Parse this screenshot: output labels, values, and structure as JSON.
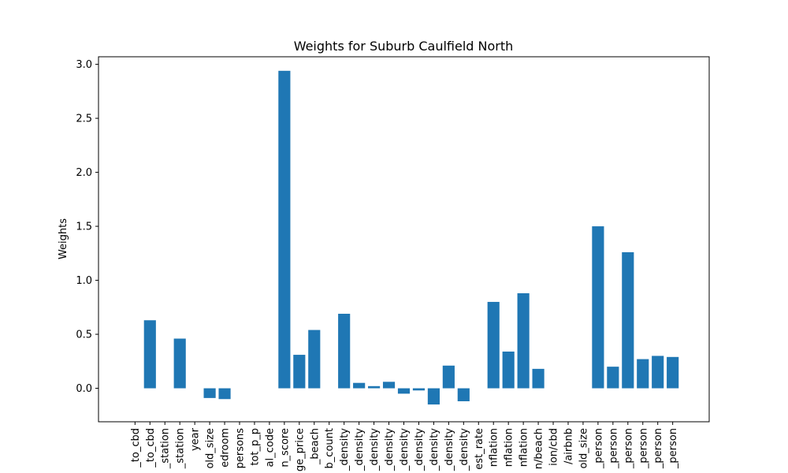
{
  "chart_data": {
    "type": "bar",
    "title": "Weights for Suburb Caulfield North",
    "xlabel": "",
    "ylabel": "Weights",
    "ylim": [
      -0.31,
      3.07
    ],
    "yticks": [
      0.0,
      0.5,
      1.0,
      1.5,
      2.0,
      2.5,
      3.0
    ],
    "ytick_labels": [
      "0.0",
      "0.5",
      "1.0",
      "1.5",
      "2.0",
      "2.5",
      "3.0"
    ],
    "bar_color": "#1f77b4",
    "grid": false,
    "legend": "none",
    "categories": [
      "_to_cbd",
      "_to_cbd",
      "_station",
      "_station",
      "year",
      "old_size",
      "edroom",
      "persons",
      "tot_p_p",
      "al_code",
      "n_score",
      "ge_price",
      "_beach",
      "b_count",
      "_density",
      "_density",
      "_density",
      "_density",
      "_density",
      "_density",
      "_density",
      "_density",
      "_density",
      "est_rate",
      "nflation",
      "nflation",
      "nflation",
      "n/beach",
      "ion/cbd",
      "/airbnb",
      "old_size",
      "_person",
      "_person",
      "_person",
      "_person",
      "_person",
      "_person"
    ],
    "values": [
      0.0,
      0.63,
      0.0,
      0.46,
      0.0,
      -0.09,
      -0.1,
      0.0,
      0.0,
      0.0,
      2.94,
      0.31,
      0.54,
      0.0,
      0.69,
      0.05,
      0.02,
      0.06,
      -0.05,
      -0.02,
      -0.15,
      0.21,
      -0.12,
      0.0,
      0.8,
      0.34,
      0.88,
      0.18,
      0.0,
      0.0,
      0.0,
      1.5,
      0.2,
      1.26,
      0.27,
      0.3,
      0.29
    ]
  }
}
